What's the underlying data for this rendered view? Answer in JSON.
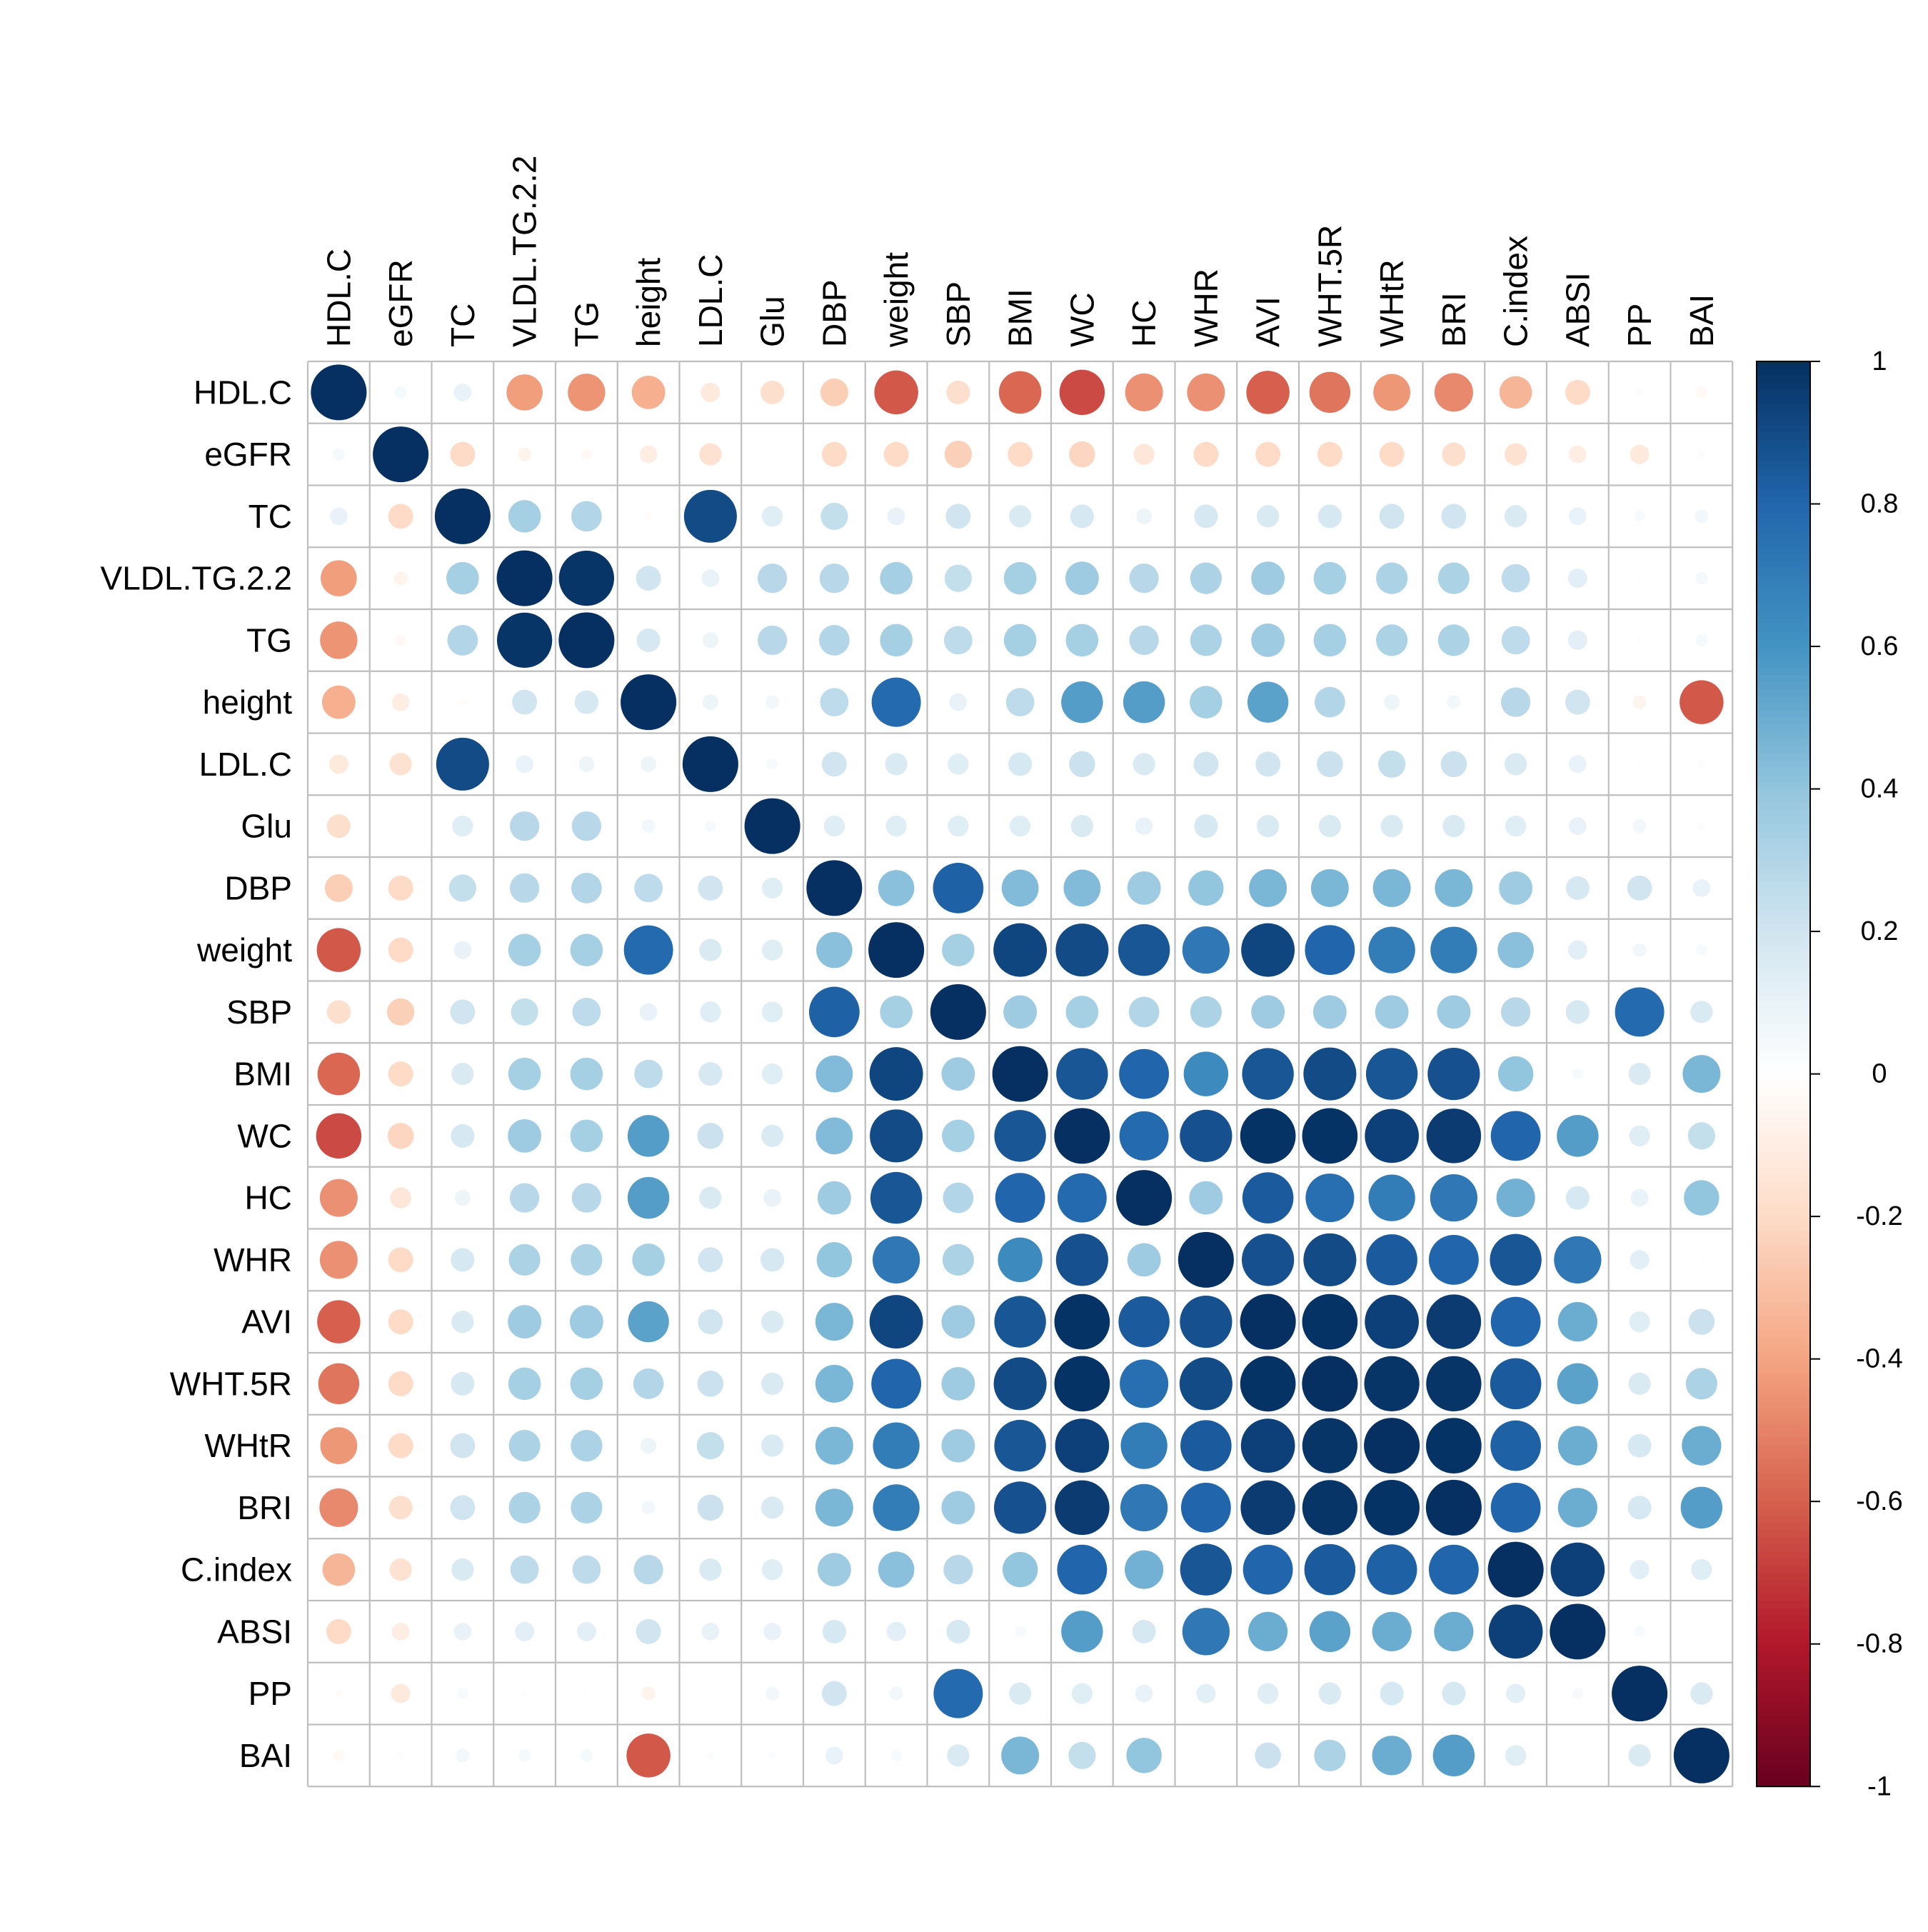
{
  "chart_data": {
    "type": "heatmap",
    "glyph": "circle",
    "variables": [
      "HDL.C",
      "eGFR",
      "TC",
      "VLDL.TG.2.2",
      "TG",
      "height",
      "LDL.C",
      "Glu",
      "DBP",
      "weight",
      "SBP",
      "BMI",
      "WC",
      "HC",
      "WHR",
      "AVI",
      "WHT.5R",
      "WHtR",
      "BRI",
      "C.index",
      "ABSI",
      "PP",
      "BAI"
    ],
    "matrix": [
      [
        1.0,
        0.05,
        0.1,
        -0.42,
        -0.45,
        -0.36,
        -0.12,
        -0.18,
        -0.25,
        -0.62,
        -0.18,
        -0.58,
        -0.66,
        -0.46,
        -0.46,
        -0.6,
        -0.54,
        -0.44,
        -0.48,
        -0.34,
        -0.2,
        -0.02,
        -0.04
      ],
      [
        0.05,
        1.0,
        -0.2,
        -0.06,
        -0.04,
        -0.1,
        -0.16,
        0.01,
        -0.2,
        -0.2,
        -0.24,
        -0.2,
        -0.22,
        -0.14,
        -0.2,
        -0.2,
        -0.2,
        -0.2,
        -0.18,
        -0.16,
        -0.1,
        -0.12,
        0.02
      ],
      [
        0.1,
        -0.2,
        1.0,
        0.34,
        0.3,
        -0.02,
        0.9,
        0.14,
        0.24,
        0.1,
        0.2,
        0.16,
        0.18,
        0.08,
        0.18,
        0.16,
        0.18,
        0.2,
        0.2,
        0.16,
        0.1,
        0.04,
        0.06
      ],
      [
        -0.42,
        -0.06,
        0.34,
        1.0,
        0.98,
        0.2,
        0.1,
        0.28,
        0.28,
        0.34,
        0.24,
        0.34,
        0.36,
        0.28,
        0.32,
        0.36,
        0.34,
        0.32,
        0.32,
        0.26,
        0.12,
        -0.01,
        0.05
      ],
      [
        -0.45,
        -0.04,
        0.3,
        0.98,
        1.0,
        0.18,
        0.08,
        0.28,
        0.3,
        0.34,
        0.26,
        0.34,
        0.34,
        0.28,
        0.32,
        0.36,
        0.34,
        0.32,
        0.32,
        0.26,
        0.12,
        -0.01,
        0.05
      ],
      [
        -0.36,
        -0.1,
        -0.02,
        0.2,
        0.18,
        1.0,
        0.08,
        0.06,
        0.26,
        0.78,
        0.1,
        0.26,
        0.56,
        0.56,
        0.34,
        0.54,
        0.3,
        0.08,
        0.06,
        0.28,
        0.2,
        -0.06,
        -0.62
      ],
      [
        -0.12,
        -0.16,
        0.9,
        0.1,
        0.08,
        0.08,
        1.0,
        0.04,
        0.2,
        0.16,
        0.14,
        0.18,
        0.22,
        0.16,
        0.2,
        0.2,
        0.22,
        0.24,
        0.22,
        0.16,
        0.1,
        0.01,
        0.02
      ],
      [
        -0.18,
        0.01,
        0.14,
        0.28,
        0.28,
        0.06,
        0.04,
        1.0,
        0.14,
        0.14,
        0.14,
        0.14,
        0.16,
        0.1,
        0.18,
        0.16,
        0.16,
        0.16,
        0.16,
        0.14,
        0.1,
        0.06,
        0.02
      ],
      [
        -0.25,
        -0.2,
        0.24,
        0.28,
        0.3,
        0.26,
        0.2,
        0.14,
        1.0,
        0.42,
        0.82,
        0.44,
        0.44,
        0.36,
        0.4,
        0.46,
        0.46,
        0.46,
        0.46,
        0.36,
        0.18,
        0.2,
        0.1
      ],
      [
        -0.62,
        -0.2,
        0.1,
        0.34,
        0.34,
        0.78,
        0.16,
        0.14,
        0.42,
        1.0,
        0.34,
        0.92,
        0.9,
        0.86,
        0.72,
        0.92,
        0.8,
        0.7,
        0.7,
        0.42,
        0.12,
        0.06,
        0.04
      ],
      [
        -0.18,
        -0.24,
        0.2,
        0.24,
        0.26,
        0.1,
        0.14,
        0.14,
        0.82,
        0.34,
        1.0,
        0.36,
        0.34,
        0.3,
        0.32,
        0.36,
        0.36,
        0.36,
        0.36,
        0.28,
        0.18,
        0.78,
        0.16
      ],
      [
        -0.58,
        -0.2,
        0.16,
        0.34,
        0.34,
        0.26,
        0.18,
        0.14,
        0.44,
        0.92,
        0.36,
        1.0,
        0.86,
        0.8,
        0.64,
        0.86,
        0.9,
        0.86,
        0.88,
        0.4,
        0.04,
        0.16,
        0.46
      ],
      [
        -0.66,
        -0.22,
        0.18,
        0.36,
        0.34,
        0.56,
        0.22,
        0.16,
        0.44,
        0.9,
        0.34,
        0.86,
        1.0,
        0.78,
        0.88,
        0.99,
        0.99,
        0.94,
        0.96,
        0.8,
        0.56,
        0.14,
        0.24
      ],
      [
        -0.46,
        -0.14,
        0.08,
        0.28,
        0.28,
        0.56,
        0.16,
        0.1,
        0.36,
        0.86,
        0.3,
        0.8,
        0.78,
        1.0,
        0.36,
        0.84,
        0.76,
        0.7,
        0.72,
        0.48,
        0.18,
        0.1,
        0.4
      ],
      [
        -0.46,
        -0.2,
        0.18,
        0.32,
        0.32,
        0.34,
        0.2,
        0.18,
        0.4,
        0.72,
        0.32,
        0.64,
        0.88,
        0.36,
        1.0,
        0.88,
        0.9,
        0.84,
        0.8,
        0.86,
        0.72,
        0.12,
        0.01
      ],
      [
        -0.6,
        -0.2,
        0.16,
        0.36,
        0.36,
        0.54,
        0.2,
        0.16,
        0.46,
        0.92,
        0.36,
        0.86,
        0.99,
        0.84,
        0.88,
        1.0,
        0.99,
        0.94,
        0.96,
        0.8,
        0.5,
        0.14,
        0.22
      ],
      [
        -0.54,
        -0.2,
        0.18,
        0.34,
        0.34,
        0.3,
        0.22,
        0.16,
        0.46,
        0.8,
        0.36,
        0.9,
        0.99,
        0.76,
        0.9,
        0.99,
        1.0,
        0.98,
        0.98,
        0.84,
        0.54,
        0.16,
        0.32
      ],
      [
        -0.44,
        -0.2,
        0.2,
        0.32,
        0.32,
        0.08,
        0.24,
        0.16,
        0.46,
        0.7,
        0.36,
        0.86,
        0.94,
        0.7,
        0.84,
        0.94,
        0.98,
        1.0,
        0.99,
        0.82,
        0.5,
        0.18,
        0.5
      ],
      [
        -0.48,
        -0.18,
        0.2,
        0.32,
        0.32,
        0.06,
        0.22,
        0.16,
        0.46,
        0.7,
        0.36,
        0.88,
        0.96,
        0.72,
        0.8,
        0.96,
        0.98,
        0.99,
        1.0,
        0.8,
        0.5,
        0.18,
        0.56
      ],
      [
        -0.34,
        -0.16,
        0.16,
        0.26,
        0.26,
        0.28,
        0.16,
        0.14,
        0.36,
        0.42,
        0.28,
        0.4,
        0.8,
        0.48,
        0.86,
        0.8,
        0.84,
        0.82,
        0.8,
        1.0,
        0.94,
        0.12,
        0.14
      ],
      [
        -0.2,
        -0.1,
        0.1,
        0.12,
        0.12,
        0.2,
        0.1,
        0.1,
        0.18,
        0.12,
        0.18,
        0.04,
        0.56,
        0.18,
        0.72,
        0.5,
        0.54,
        0.5,
        0.5,
        0.94,
        1.0,
        0.04,
        0.0
      ],
      [
        -0.02,
        -0.12,
        0.04,
        -0.01,
        -0.01,
        -0.06,
        0.01,
        0.06,
        0.2,
        0.06,
        0.78,
        0.16,
        0.14,
        0.1,
        0.12,
        0.14,
        0.16,
        0.18,
        0.18,
        0.12,
        0.04,
        1.0,
        0.16
      ],
      [
        -0.04,
        0.02,
        0.06,
        0.05,
        0.05,
        -0.62,
        0.02,
        0.02,
        0.1,
        0.04,
        0.16,
        0.46,
        0.24,
        0.4,
        0.01,
        0.22,
        0.32,
        0.5,
        0.56,
        0.14,
        0.0,
        0.16,
        1.0
      ]
    ],
    "legend": {
      "position": "right",
      "ticks": [
        "1",
        "0.8",
        "0.6",
        "0.4",
        "0.2",
        "0",
        "-0.2",
        "-0.4",
        "-0.6",
        "-0.8",
        "-1"
      ],
      "range": [
        -1,
        1
      ]
    },
    "colors": {
      "scale": [
        "#67001f",
        "#b2182b",
        "#d6604d",
        "#f4a582",
        "#fddbc7",
        "#ffffff",
        "#d1e5f0",
        "#92c5de",
        "#4393c3",
        "#2166ac",
        "#053061"
      ],
      "grid": "#bebebe"
    }
  }
}
